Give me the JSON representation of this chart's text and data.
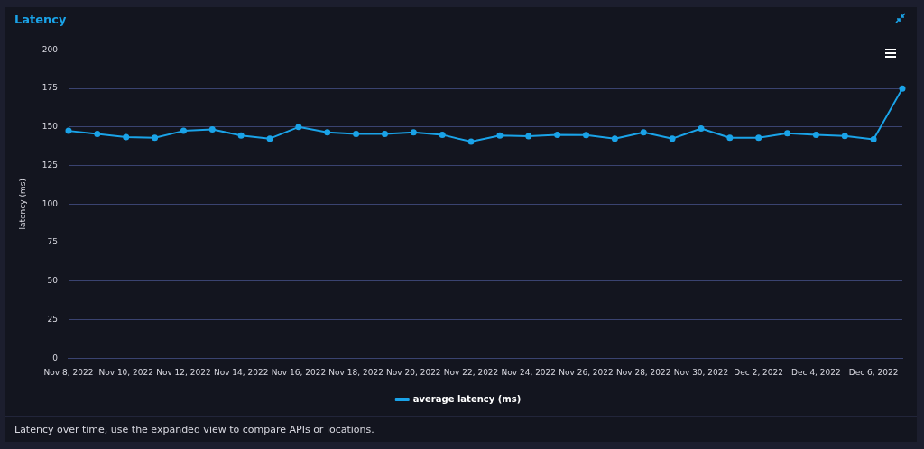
{
  "chart_data": {
    "type": "line",
    "title": "Latency",
    "ylabel": "latency (ms)",
    "categories": [
      "Nov 8, 2022",
      null,
      "Nov 10, 2022",
      null,
      "Nov 12, 2022",
      null,
      "Nov 14, 2022",
      null,
      "Nov 16, 2022",
      null,
      "Nov 18, 2022",
      null,
      "Nov 20, 2022",
      null,
      "Nov 22, 2022",
      null,
      "Nov 24, 2022",
      null,
      "Nov 26, 2022",
      null,
      "Nov 28, 2022",
      null,
      "Nov 30, 2022",
      null,
      "Dec 2, 2022",
      null,
      "Dec 4, 2022",
      null,
      "Dec 6, 2022",
      null
    ],
    "series": [
      {
        "name": "average latency (ms)",
        "color": "#1aa3e8",
        "values": [
          147.5,
          145.5,
          143.5,
          143,
          147.5,
          148.5,
          144.5,
          142.5,
          150,
          146.5,
          145.5,
          145.5,
          146.5,
          145,
          140.5,
          144.5,
          144,
          145,
          144.8,
          142.5,
          146.5,
          142.5,
          149,
          143,
          143,
          146,
          145,
          144.2,
          142,
          175
        ]
      }
    ],
    "ylim": [
      0,
      200
    ],
    "yticks": [
      0,
      25,
      50,
      75,
      100,
      125,
      150,
      175,
      200
    ],
    "grid": "y",
    "legend": "bottom",
    "marker": "circle",
    "line_style": "solid",
    "annotations": [
      "Latency over time, use the expanded view to compare APIs or locations."
    ]
  }
}
